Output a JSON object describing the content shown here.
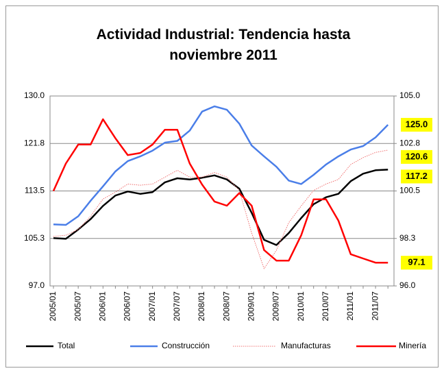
{
  "chart_data": {
    "type": "line",
    "title": "Actividad Industrial: Tendencia hasta noviembre 2011",
    "categories": [
      "2005/01",
      null,
      "2005/07",
      null,
      "2006/01",
      null,
      "2006/07",
      null,
      "2007/01",
      null,
      "2007/07",
      null,
      "2008/01",
      null,
      "2008/07",
      null,
      "2009/01",
      null,
      "2009/07",
      null,
      "2010/01",
      null,
      "2010/07",
      null,
      "2011/01",
      null,
      "2011/07",
      null
    ],
    "ylim": [
      97,
      130
    ],
    "yticks": [
      {
        "value": 97,
        "label": "97.0"
      },
      {
        "value": 105.25,
        "label": "105.3"
      },
      113.5,
      {
        "value": 121.75,
        "label": "121.8"
      },
      {
        "value": 130,
        "label": "130.0"
      }
    ],
    "y2lim": [
      96,
      105
    ],
    "y2ticks": [
      {
        "value": 96,
        "label": "96.0"
      },
      {
        "value": 98.25,
        "label": "98.3"
      },
      100.5,
      {
        "value": 102.75,
        "label": "102.8"
      },
      {
        "value": 105,
        "label": "105.0"
      }
    ],
    "grid": true,
    "legend": "bottom",
    "series": [
      {
        "name": "Total",
        "color": "#000000",
        "line_style": "solid",
        "end_label": "117.2",
        "values": [
          105.3,
          105.2,
          106.8,
          108.6,
          110.9,
          112.7,
          113.4,
          113.0,
          113.3,
          115.0,
          115.7,
          115.5,
          115.8,
          116.2,
          115.5,
          113.9,
          109.7,
          105.0,
          104.1,
          106.2,
          108.8,
          111.2,
          112.4,
          113.0,
          115.2,
          116.5,
          117.1,
          117.2
        ]
      },
      {
        "name": "Construcción",
        "color": "#4a7ee8",
        "line_style": "solid",
        "end_label": "125.0",
        "values": [
          107.7,
          107.6,
          109.1,
          111.8,
          114.3,
          116.9,
          118.7,
          119.5,
          120.5,
          121.9,
          122.2,
          124.0,
          127.3,
          128.2,
          127.6,
          125.2,
          121.4,
          119.5,
          117.7,
          115.3,
          114.7,
          116.3,
          118.1,
          119.5,
          120.7,
          121.3,
          122.8,
          125.0
        ]
      },
      {
        "name": "Manufacturas",
        "color": "#f07070",
        "line_style": "dotted",
        "end_label": "120.6",
        "values": [
          105.6,
          105.8,
          106.8,
          109.1,
          112.1,
          113.3,
          114.7,
          114.5,
          114.7,
          115.9,
          117.1,
          115.9,
          115.9,
          116.7,
          115.9,
          113.6,
          106.2,
          100.0,
          103.2,
          108.0,
          110.9,
          113.6,
          114.7,
          115.5,
          118.1,
          119.3,
          120.2,
          120.6
        ]
      },
      {
        "name": "Minería",
        "color": "#ff0000",
        "line_style": "solid",
        "axis": "y2",
        "end_label": "97.1",
        "values": [
          100.5,
          101.8,
          102.7,
          102.7,
          103.9,
          103.0,
          102.2,
          102.3,
          102.7,
          103.4,
          103.4,
          101.8,
          100.8,
          100.0,
          99.8,
          100.4,
          99.8,
          97.7,
          97.2,
          97.2,
          98.4,
          100.1,
          100.1,
          99.1,
          97.5,
          97.3,
          97.1,
          97.1
        ]
      }
    ]
  }
}
